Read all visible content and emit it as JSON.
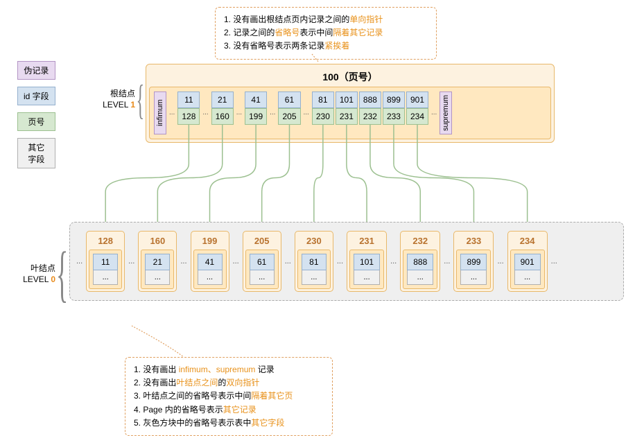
{
  "legend": {
    "pseudo": "伪记录",
    "id": "id 字段",
    "page": "页号",
    "other": "其它\n字段"
  },
  "topAnnotation": {
    "lines": [
      {
        "pre": "1. 没有画出根结点页内记录之间的",
        "hl": "单向指针",
        "post": ""
      },
      {
        "pre": "2. 记录之间的",
        "hl": "省略号",
        "mid": "表示中间",
        "hl2": "隔着其它记录",
        "post": ""
      },
      {
        "pre": "3. 没有省略号表示两条记录",
        "hl": "紧挨着",
        "post": ""
      }
    ]
  },
  "bottomAnnotation": {
    "lines": [
      {
        "pre": "1. 没有画出 ",
        "hl": "infimum、supremum",
        "post": " 记录"
      },
      {
        "pre": "2. 没有画出",
        "hl": "叶结点之间",
        "mid": "的",
        "hl2": "双向指针",
        "post": ""
      },
      {
        "pre": "3. 叶结点之间的省略号表示中间",
        "hl": "隔着其它页",
        "post": ""
      },
      {
        "pre": "4. Page 内的省略号表示",
        "hl": "其它记录",
        "post": ""
      },
      {
        "pre": "5. 灰色方块中的省略号表示表中",
        "hl": "其它字段",
        "post": ""
      }
    ]
  },
  "root": {
    "pageNum": "100",
    "pageNumSuffix": "（页号）",
    "infimum": "infimum",
    "supremum": "supremum",
    "records": [
      {
        "id": "11",
        "page": "128",
        "dotsAfter": true
      },
      {
        "id": "21",
        "page": "160",
        "dotsAfter": true
      },
      {
        "id": "41",
        "page": "199",
        "dotsAfter": true
      },
      {
        "id": "61",
        "page": "205",
        "dotsAfter": true
      },
      {
        "id": "81",
        "page": "230",
        "dotsAfter": false
      },
      {
        "id": "101",
        "page": "231",
        "dotsAfter": false
      },
      {
        "id": "888",
        "page": "232",
        "dotsAfter": false
      },
      {
        "id": "899",
        "page": "233",
        "dotsAfter": false
      },
      {
        "id": "901",
        "page": "234",
        "dotsAfter": true
      }
    ]
  },
  "levelLabels": {
    "root": {
      "text": "根结点",
      "level": "LEVEL ",
      "num": "1"
    },
    "leaf": {
      "text": "叶结点",
      "level": "LEVEL ",
      "num": "0"
    }
  },
  "leaves": [
    {
      "page": "128",
      "id": "11"
    },
    {
      "page": "160",
      "id": "21"
    },
    {
      "page": "199",
      "id": "41"
    },
    {
      "page": "205",
      "id": "61"
    },
    {
      "page": "230",
      "id": "81"
    },
    {
      "page": "231",
      "id": "101"
    },
    {
      "page": "232",
      "id": "888"
    },
    {
      "page": "233",
      "id": "899"
    },
    {
      "page": "234",
      "id": "901"
    }
  ],
  "ellipsis": "...",
  "colors": {
    "purple_bg": "#e8daf0",
    "purple_border": "#b294c4",
    "blue_bg": "#d4e2f0",
    "blue_border": "#94b0ce",
    "green_bg": "#d6e8d0",
    "green_border": "#9cc090",
    "gray_bg": "#f0f0f0",
    "gray_border": "#b0b0b0",
    "orange_bg": "#fdf2e0",
    "orange_border": "#e8b86a",
    "arrow": "#9cc090"
  }
}
